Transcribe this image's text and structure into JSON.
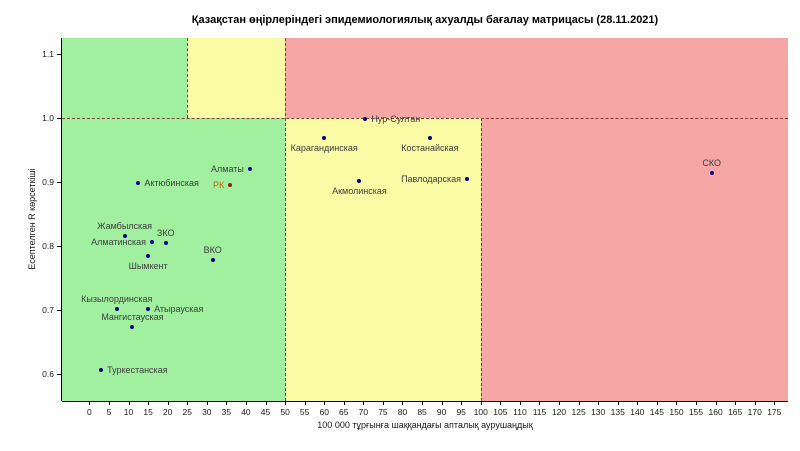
{
  "title": "Қазақстан өңірлеріндегі эпидемиологиялық ахуалды бағалау матрицасы  (28.11.2021)",
  "chart_data": {
    "type": "scatter",
    "title": "Қазақстан өңірлеріндегі эпидемиологиялық ахуалды бағалау матрицасы  (28.11.2021)",
    "xlabel": "100 000 тұрғынға шаққандағы апталық аурушаңдық",
    "ylabel": "Есептелген R көрсеткіші",
    "xlim": [
      -7,
      178.5
    ],
    "ylim": [
      0.558,
      1.125
    ],
    "grid": false,
    "x_ticks": [
      0,
      5,
      10,
      15,
      20,
      25,
      30,
      35,
      40,
      45,
      50,
      55,
      60,
      65,
      70,
      75,
      80,
      85,
      90,
      95,
      100,
      105,
      110,
      115,
      120,
      125,
      130,
      135,
      140,
      145,
      150,
      155,
      160,
      165,
      170,
      175
    ],
    "y_ticks": [
      "0.6",
      "0.7",
      "0.8",
      "0.9",
      "1.0",
      "1.1"
    ],
    "zones": [
      {
        "name": "green-top-left",
        "x1": -7,
        "x2": 25,
        "y1": 1.0,
        "y2": 1.125,
        "color": "#a0f0a0"
      },
      {
        "name": "yellow-top",
        "x1": 25,
        "x2": 50,
        "y1": 1.0,
        "y2": 1.125,
        "color": "#fbfba6"
      },
      {
        "name": "red-top",
        "x1": 50,
        "x2": 178.5,
        "y1": 1.0,
        "y2": 1.125,
        "color": "#f7a6a6"
      },
      {
        "name": "green-bottom",
        "x1": -7,
        "x2": 50,
        "y1": 0.558,
        "y2": 1.0,
        "color": "#a0f0a0"
      },
      {
        "name": "yellow-bottom",
        "x1": 50,
        "x2": 100,
        "y1": 0.558,
        "y2": 1.0,
        "color": "#fbfba6"
      },
      {
        "name": "red-bottom",
        "x1": 100,
        "x2": 178.5,
        "y1": 0.558,
        "y2": 1.0,
        "color": "#f7a6a6"
      }
    ],
    "threshold_lines": [
      {
        "name": "r-equals-1",
        "orient": "h",
        "at": 1.0,
        "from": -7,
        "to": 178.5
      },
      {
        "name": "incidence-25-top",
        "orient": "v",
        "at": 25,
        "from": 1.0,
        "to": 1.125
      },
      {
        "name": "incidence-50-full",
        "orient": "v",
        "at": 50,
        "from": 0.558,
        "to": 1.125
      },
      {
        "name": "incidence-100-low",
        "orient": "v",
        "at": 100,
        "from": 0.558,
        "to": 1.0
      }
    ],
    "points": [
      {
        "name": "Алматы",
        "x": 41,
        "y": 0.921,
        "label_pos": "left",
        "highlight": false
      },
      {
        "name": "Актюбинская",
        "x": 12.5,
        "y": 0.898,
        "label_pos": "right",
        "highlight": false
      },
      {
        "name": "РК",
        "x": 36,
        "y": 0.895,
        "label_pos": "left",
        "highlight": true
      },
      {
        "name": "Жамбылская",
        "x": 9,
        "y": 0.816,
        "label_pos": "above",
        "highlight": false
      },
      {
        "name": "Алматинская",
        "x": 16,
        "y": 0.806,
        "label_pos": "left",
        "highlight": false
      },
      {
        "name": "ЗКО",
        "x": 19.5,
        "y": 0.805,
        "label_pos": "above",
        "highlight": false
      },
      {
        "name": "ВКО",
        "x": 31.5,
        "y": 0.778,
        "label_pos": "above",
        "highlight": false
      },
      {
        "name": "Шымкент",
        "x": 15,
        "y": 0.784,
        "label_pos": "below",
        "highlight": false
      },
      {
        "name": "Кызылординская",
        "x": 7,
        "y": 0.702,
        "label_pos": "above",
        "highlight": false
      },
      {
        "name": "Атырауская",
        "x": 15,
        "y": 0.701,
        "label_pos": "right",
        "highlight": false
      },
      {
        "name": "Мангистауская",
        "x": 11,
        "y": 0.673,
        "label_pos": "above",
        "highlight": false
      },
      {
        "name": "Туркестанская",
        "x": 3,
        "y": 0.606,
        "label_pos": "right",
        "highlight": false
      },
      {
        "name": "Нур-Султан",
        "x": 70.5,
        "y": 0.999,
        "label_pos": "right",
        "highlight": false
      },
      {
        "name": "Карагандинская",
        "x": 60,
        "y": 0.969,
        "label_pos": "below",
        "highlight": false
      },
      {
        "name": "Костанайская",
        "x": 87,
        "y": 0.969,
        "label_pos": "below",
        "highlight": false
      },
      {
        "name": "Павлодарская",
        "x": 96.5,
        "y": 0.905,
        "label_pos": "left",
        "highlight": false
      },
      {
        "name": "Акмолинская",
        "x": 69,
        "y": 0.901,
        "label_pos": "below",
        "highlight": false
      },
      {
        "name": "СКО",
        "x": 159,
        "y": 0.914,
        "label_pos": "above",
        "highlight": false
      }
    ]
  },
  "colors": {
    "threshold": "#8b3a3a",
    "point": "#00008b",
    "point_rk": "#8b2500",
    "label": "#3d3d3d",
    "label_rk": "#cc6600",
    "axis": "#000000"
  }
}
